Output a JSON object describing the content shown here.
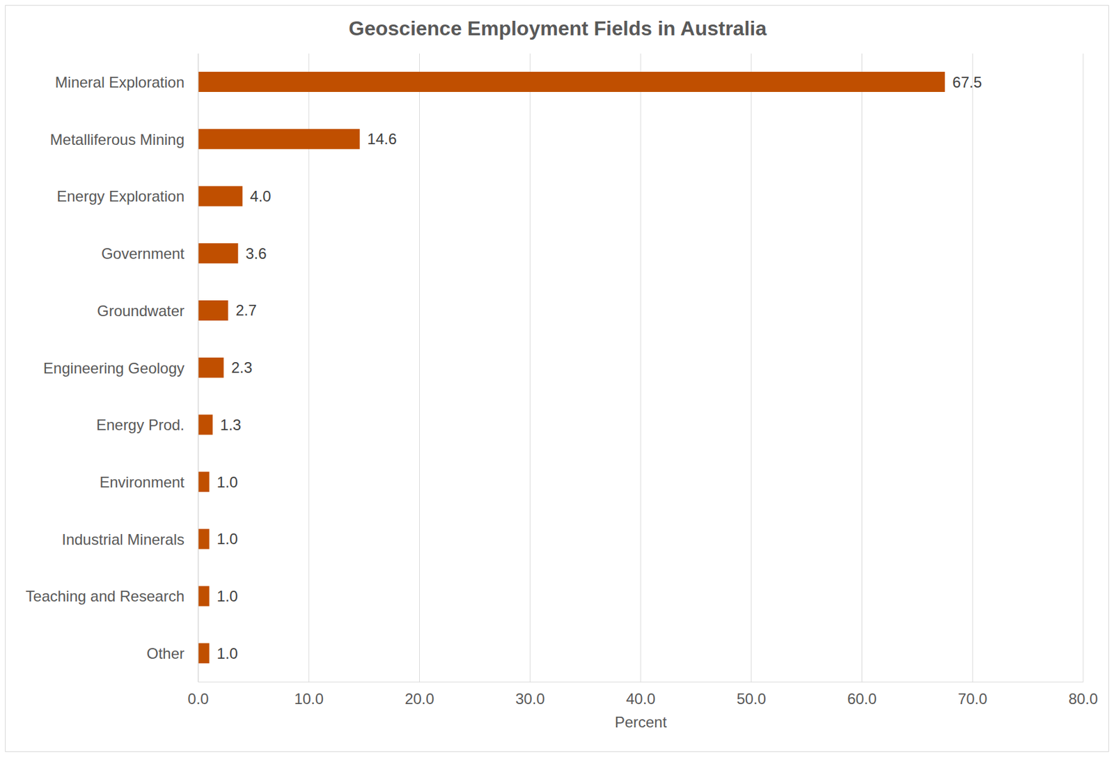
{
  "chart_data": {
    "type": "bar",
    "orientation": "horizontal",
    "title": "Geoscience Employment Fields in Australia",
    "x_label": "Percent",
    "categories": [
      "Mineral Exploration",
      "Metalliferous Mining",
      "Energy Exploration",
      "Government",
      "Groundwater",
      "Engineering Geology",
      "Energy Prod.",
      "Environment",
      "Industrial Minerals",
      "Teaching and Research",
      "Other"
    ],
    "values": [
      67.5,
      14.6,
      4.0,
      3.6,
      2.7,
      2.3,
      1.3,
      1.0,
      1.0,
      1.0,
      1.0
    ],
    "value_labels": [
      "67.5",
      "14.6",
      "4.0",
      "3.6",
      "2.7",
      "2.3",
      "1.3",
      "1.0",
      "1.0",
      "1.0",
      "1.0"
    ],
    "data_labels": true,
    "color": "#c04f00",
    "xlim": [
      0,
      80
    ],
    "xticks": [
      {
        "value": 0,
        "label": "0.0"
      },
      {
        "value": 10,
        "label": "10.0"
      },
      {
        "value": 20,
        "label": "20.0"
      },
      {
        "value": 30,
        "label": "30.0"
      },
      {
        "value": 40,
        "label": "40.0"
      },
      {
        "value": 50,
        "label": "50.0"
      },
      {
        "value": 60,
        "label": "60.0"
      },
      {
        "value": 70,
        "label": "70.0"
      },
      {
        "value": 80,
        "label": "80.0"
      }
    ],
    "grid": true
  }
}
